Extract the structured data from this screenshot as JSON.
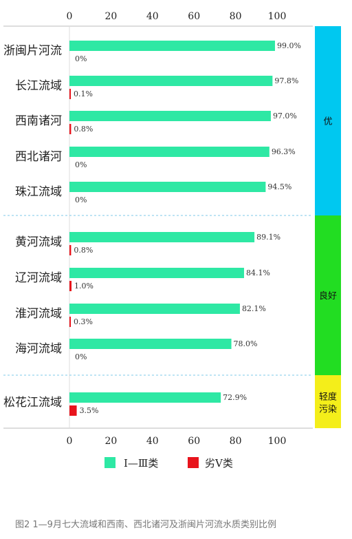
{
  "chart_data": {
    "type": "bar",
    "orientation": "horizontal",
    "xlim": [
      0,
      100
    ],
    "x_ticks": [
      0,
      20,
      40,
      60,
      80,
      100
    ],
    "categories": [
      "浙闽片河流",
      "长江流域",
      "西南诸河",
      "西北诸河",
      "珠江流域",
      "黄河流域",
      "辽河流域",
      "淮河流域",
      "海河流域",
      "松花江流域"
    ],
    "series": [
      {
        "name": "Ⅰ—Ⅲ类",
        "color": "#2ee8a4",
        "values": [
          99.0,
          97.8,
          97.0,
          96.3,
          94.5,
          89.1,
          84.1,
          82.1,
          78.0,
          72.9
        ],
        "labels": [
          "99.0%",
          "97.8%",
          "97.0%",
          "96.3%",
          "94.5%",
          "89.1%",
          "84.1%",
          "82.1%",
          "78.0%",
          "72.9%"
        ]
      },
      {
        "name": "劣Ⅴ类",
        "color": "#e8141c",
        "values": [
          0,
          0.1,
          0.8,
          0,
          0,
          0.8,
          1.0,
          0.3,
          0,
          3.5
        ],
        "labels": [
          "0%",
          "0.1%",
          "0.8%",
          "0%",
          "0%",
          "0.8%",
          "1.0%",
          "0.3%",
          "0%",
          "3.5%"
        ]
      }
    ],
    "bands": [
      {
        "label": "优",
        "color": "#00c8f0",
        "categories": [
          "浙闽片河流",
          "长江流域",
          "西南诸河",
          "西北诸河",
          "珠江流域"
        ]
      },
      {
        "label": "良好",
        "color": "#22dd22",
        "categories": [
          "黄河流域",
          "辽河流域",
          "淮河流域",
          "海河流域"
        ]
      },
      {
        "label": "轻度污染",
        "color": "#f4ee1a",
        "categories": [
          "松花江流域"
        ]
      }
    ],
    "legend_position": "bottom",
    "grid": false
  },
  "caption": "图2   1—9月七大流域和西南、西北诸河及浙闽片河流水质类别比例"
}
